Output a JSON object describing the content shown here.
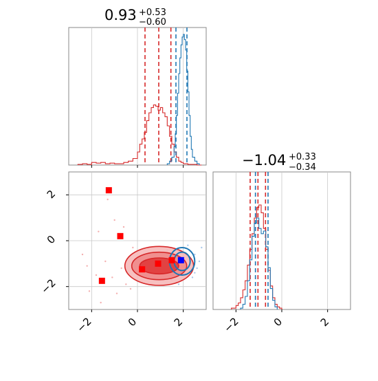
{
  "chart_data": [
    {
      "panel": "marginal-x",
      "type": "histogram",
      "title": {
        "value": "0.93",
        "upper": "+0.53",
        "lower": "−0.60"
      },
      "xlim": [
        -3,
        3
      ],
      "grid": true,
      "series": [
        {
          "color": "#d62728",
          "quantile_lines": [
            0.33,
            0.93,
            1.46
          ],
          "bins": [
            -2.6,
            -2.4,
            -2.2,
            -2.0,
            -1.8,
            -1.6,
            -1.4,
            -1.2,
            -1.0,
            -0.8,
            -0.6,
            -0.4,
            -0.2,
            0.0,
            0.1,
            0.2,
            0.3,
            0.4,
            0.5,
            0.6,
            0.7,
            0.8,
            0.9,
            1.0,
            1.1,
            1.2,
            1.3,
            1.4,
            1.5,
            1.6,
            1.7,
            1.8,
            1.9,
            2.0,
            2.2,
            2.4,
            2.6,
            2.8
          ],
          "heights": [
            0.005,
            0.01,
            0.005,
            0.02,
            0.015,
            0.02,
            0.01,
            0.015,
            0.01,
            0.01,
            0.02,
            0.03,
            0.05,
            0.1,
            0.16,
            0.2,
            0.25,
            0.34,
            0.4,
            0.44,
            0.46,
            0.45,
            0.42,
            0.44,
            0.4,
            0.37,
            0.3,
            0.22,
            0.16,
            0.1,
            0.06,
            0.03,
            0.02,
            0.01,
            0.005,
            0.005,
            0.0
          ]
        },
        {
          "color": "#1f77b4",
          "quantile_lines": [
            1.68,
            2.16
          ],
          "bins": [
            1.3,
            1.4,
            1.5,
            1.6,
            1.65,
            1.7,
            1.75,
            1.8,
            1.85,
            1.9,
            1.95,
            2.0,
            2.05,
            2.1,
            2.15,
            2.2,
            2.25,
            2.3,
            2.35,
            2.4,
            2.5,
            2.6,
            2.7
          ],
          "heights": [
            0.01,
            0.03,
            0.06,
            0.14,
            0.24,
            0.38,
            0.55,
            0.7,
            0.82,
            0.92,
            0.98,
            1.0,
            0.96,
            0.88,
            0.72,
            0.56,
            0.38,
            0.22,
            0.12,
            0.06,
            0.03,
            0.01,
            0.0
          ]
        }
      ]
    },
    {
      "panel": "marginal-y",
      "type": "histogram",
      "title": {
        "value": "−1.04",
        "upper": "+0.33",
        "lower": "−0.34"
      },
      "xlim": [
        -3,
        3
      ],
      "xticks": [
        "−2",
        "0",
        "2"
      ],
      "grid": true,
      "series": [
        {
          "color": "#d62728",
          "quantile_lines": [
            -1.38,
            -1.04,
            -0.71
          ],
          "bins": [
            -2.2,
            -2.0,
            -1.9,
            -1.8,
            -1.7,
            -1.6,
            -1.5,
            -1.4,
            -1.3,
            -1.2,
            -1.1,
            -1.0,
            -0.9,
            -0.8,
            -0.7,
            -0.6,
            -0.5,
            -0.4,
            -0.3,
            -0.2,
            -0.1,
            0.0
          ],
          "heights": [
            0.01,
            0.03,
            0.05,
            0.09,
            0.15,
            0.22,
            0.34,
            0.46,
            0.58,
            0.7,
            0.78,
            0.8,
            0.74,
            0.62,
            0.46,
            0.3,
            0.18,
            0.09,
            0.04,
            0.02,
            0.01,
            0.0
          ]
        },
        {
          "color": "#1f77b4",
          "quantile_lines": [
            -1.15,
            -0.6
          ],
          "bins": [
            -1.8,
            -1.7,
            -1.6,
            -1.5,
            -1.4,
            -1.3,
            -1.2,
            -1.1,
            -1.0,
            -0.9,
            -0.8,
            -0.7,
            -0.6,
            -0.5,
            -0.4,
            -0.3,
            -0.2
          ],
          "heights": [
            0.01,
            0.04,
            0.1,
            0.22,
            0.38,
            0.56,
            0.66,
            0.7,
            0.62,
            0.58,
            0.6,
            0.48,
            0.32,
            0.16,
            0.07,
            0.02,
            0.0
          ]
        }
      ]
    },
    {
      "panel": "joint",
      "type": "scatter",
      "xlim": [
        -3,
        3
      ],
      "ylim": [
        -3,
        3
      ],
      "xticks": [
        "−2",
        "0",
        "2"
      ],
      "yticks": [
        "2",
        "0",
        "−2"
      ],
      "grid": true,
      "red_contour": {
        "center": [
          0.95,
          -1.1
        ],
        "rx": [
          1.5,
          1.2,
          0.85
        ],
        "ry": [
          0.85,
          0.6,
          0.35
        ],
        "color": "#d62728"
      },
      "blue_contour": {
        "center": [
          1.95,
          -0.9
        ],
        "rx": [
          0.55,
          0.35
        ],
        "ry": [
          0.6,
          0.4
        ],
        "color": "#1f77b4"
      },
      "red_markers": [
        [
          -1.25,
          2.2
        ],
        [
          -0.75,
          0.2
        ],
        [
          -1.55,
          -1.75
        ],
        [
          0.2,
          -1.25
        ],
        [
          0.9,
          -1.0
        ],
        [
          1.5,
          -0.85
        ]
      ],
      "blue_marker": [
        1.9,
        -0.85
      ],
      "scatter_points": [
        [
          -2.1,
          -2.2,
          "r"
        ],
        [
          -1.8,
          -1.5,
          "r"
        ],
        [
          -1.4,
          -0.9,
          "r"
        ],
        [
          -0.9,
          -2.3,
          "r"
        ],
        [
          -1.0,
          0.9,
          "r"
        ],
        [
          -1.3,
          1.8,
          "r"
        ],
        [
          -0.5,
          -1.9,
          "r"
        ],
        [
          -0.2,
          -0.3,
          "r"
        ],
        [
          -2.4,
          -0.6,
          "r"
        ],
        [
          -1.6,
          -2.7,
          "r"
        ],
        [
          -0.7,
          -1.2,
          "r"
        ],
        [
          -0.3,
          -2.1,
          "r"
        ],
        [
          -1.7,
          0.4,
          "r"
        ],
        [
          -2.2,
          -1.1,
          "r"
        ],
        [
          -0.6,
          0.6,
          "r"
        ],
        [
          -1.1,
          -1.6,
          "r"
        ],
        [
          2.5,
          -0.6,
          "b"
        ],
        [
          2.6,
          -1.2,
          "b"
        ],
        [
          2.4,
          -1.6,
          "b"
        ],
        [
          1.3,
          -0.4,
          "b"
        ],
        [
          2.7,
          -0.9,
          "b"
        ],
        [
          1.5,
          -1.7,
          "b"
        ],
        [
          2.8,
          -0.3,
          "b"
        ],
        [
          2.2,
          -0.2,
          "b"
        ],
        [
          1.8,
          -1.9,
          "b"
        ],
        [
          2.5,
          -1.4,
          "b"
        ]
      ]
    }
  ]
}
